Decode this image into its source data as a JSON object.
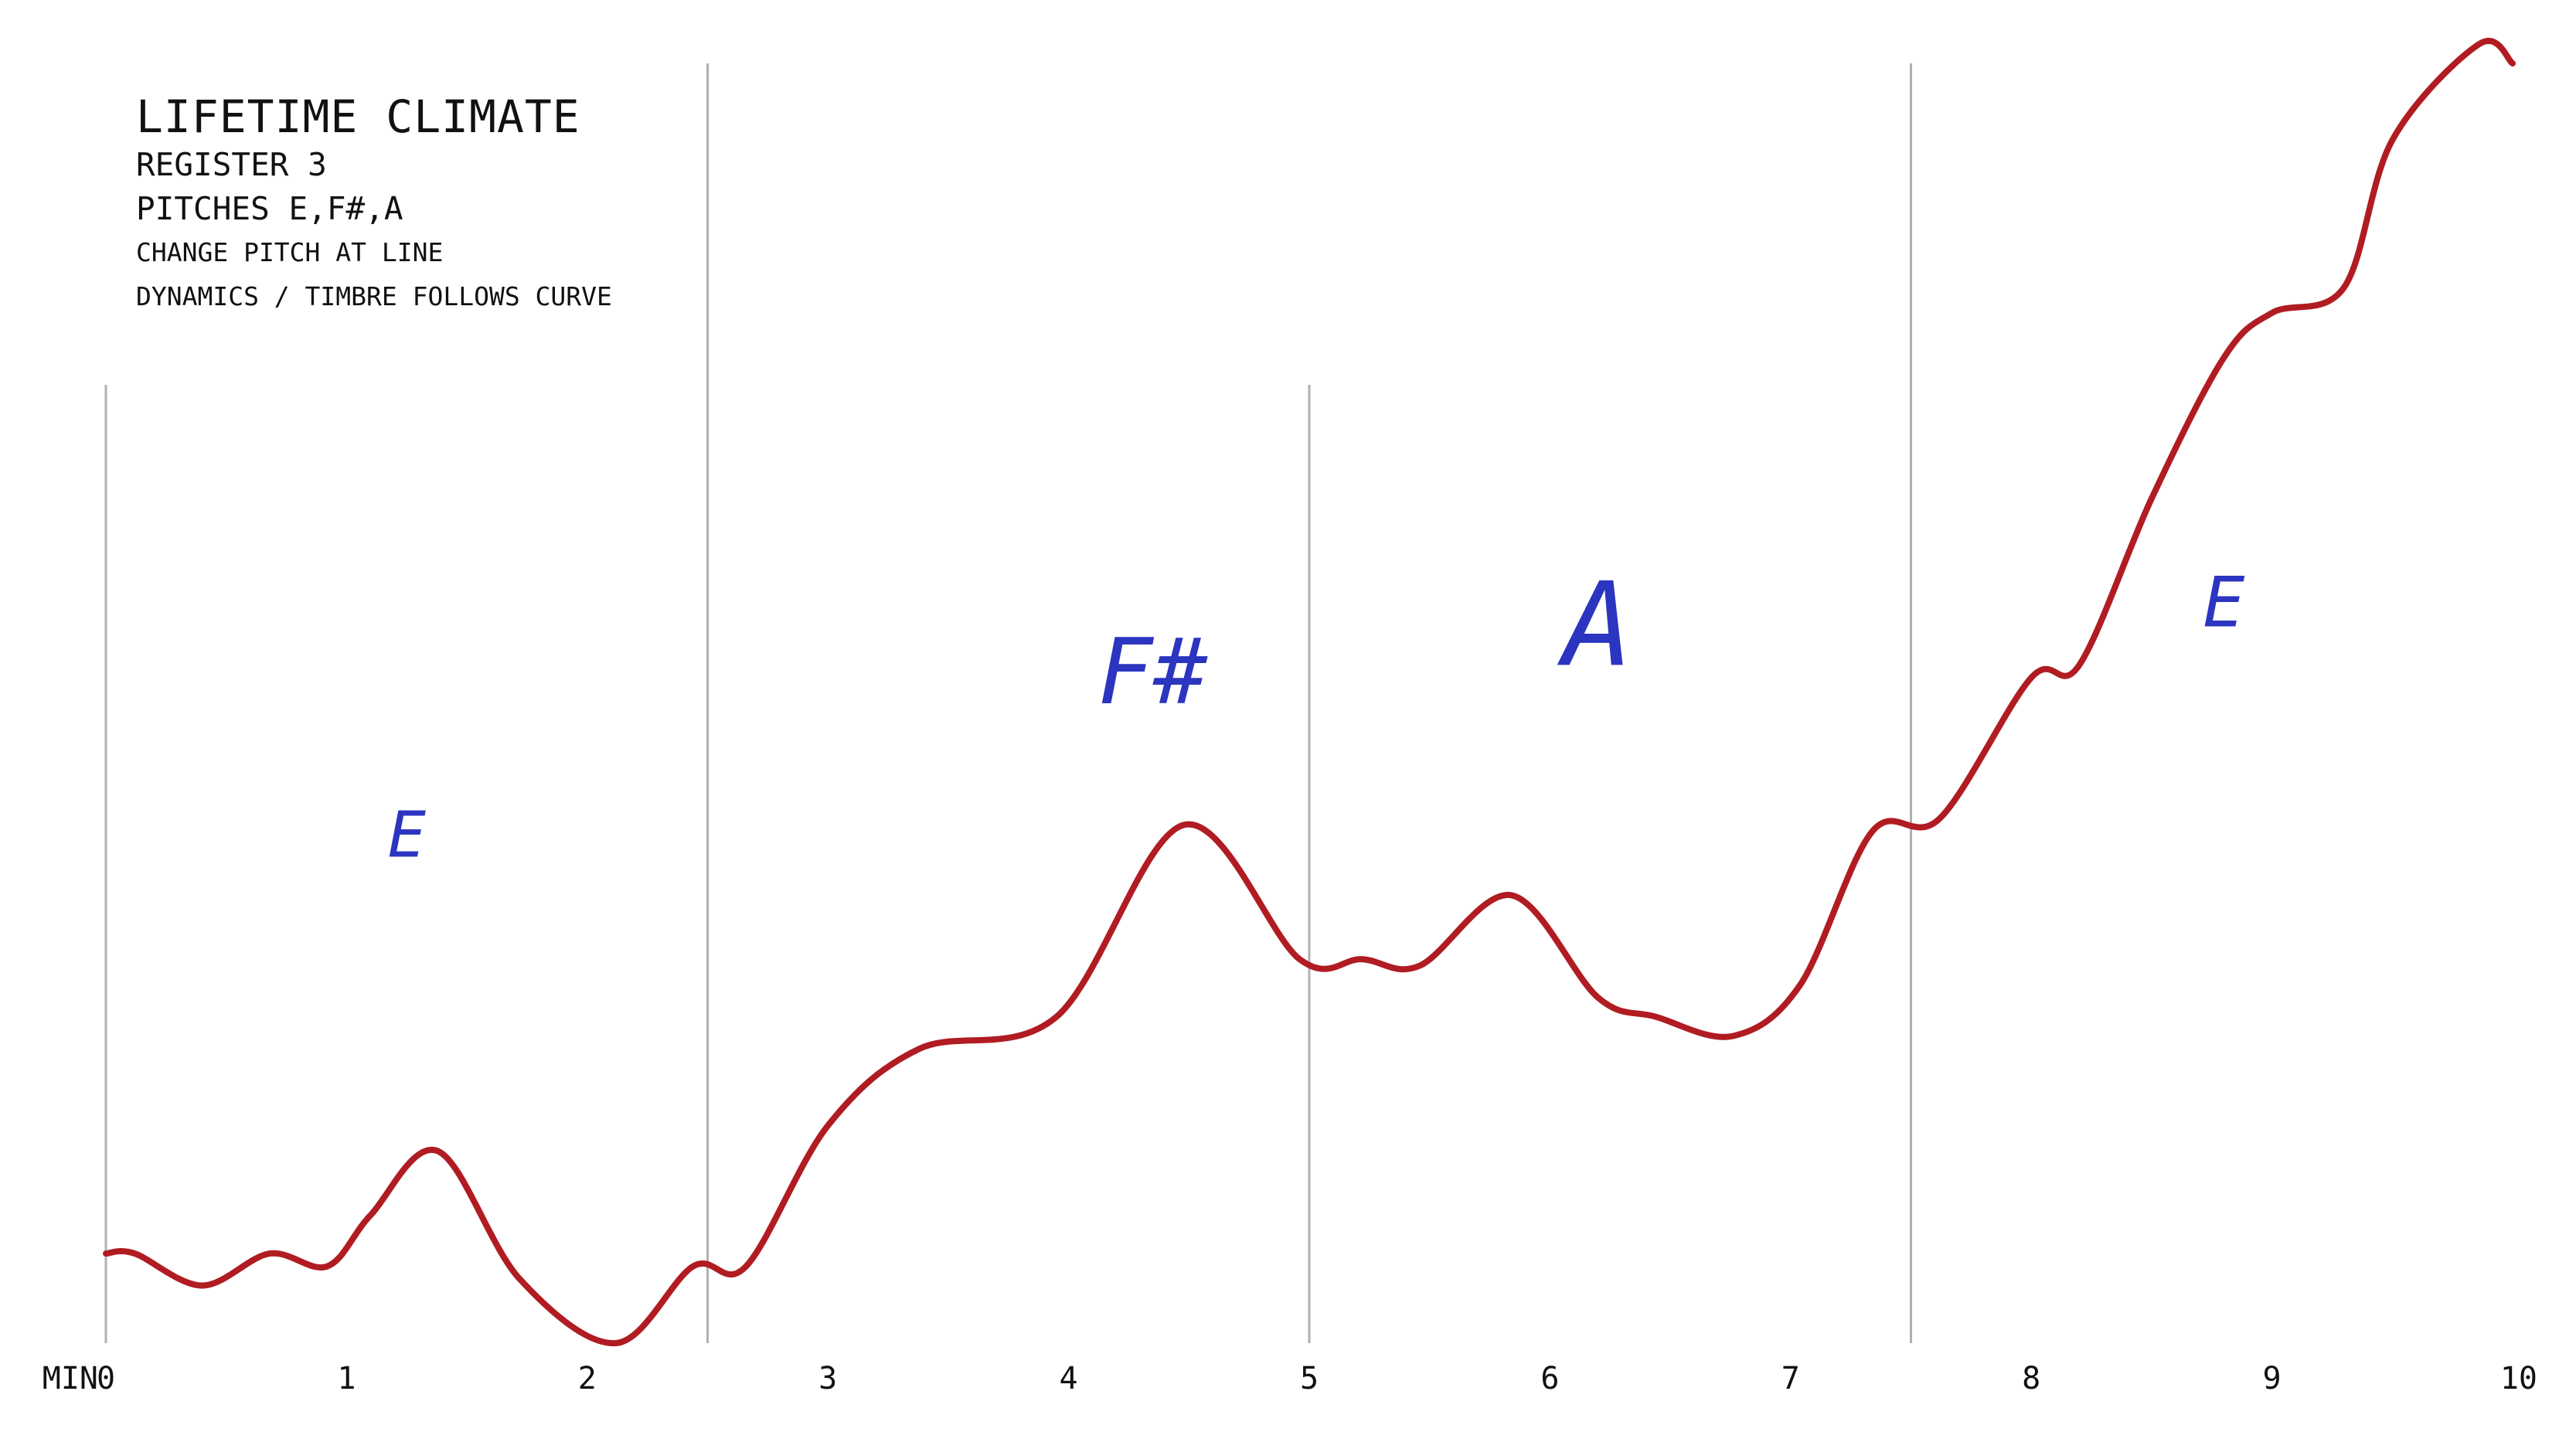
{
  "header": {
    "title": "LIFETIME CLIMATE",
    "lines": [
      "REGISTER 3",
      "PITCHES E,F#,A",
      "CHANGE PITCH AT LINE",
      "DYNAMICS / TIMBRE FOLLOWS CURVE"
    ]
  },
  "colors": {
    "curve": "#b01c22",
    "note": "#2b35c0",
    "grid": "#b0b0b0",
    "text": "#111111"
  },
  "chart_data": {
    "type": "line",
    "xlabel": "MIN",
    "xlim": [
      0,
      10
    ],
    "x_ticks": [
      0,
      1,
      2,
      3,
      4,
      5,
      6,
      7,
      8,
      9,
      10
    ],
    "x_tick_labels": [
      "0",
      "1",
      "2",
      "3",
      "4",
      "5",
      "6",
      "7",
      "8",
      "9",
      "10"
    ],
    "ylim": [
      0,
      100
    ],
    "section_lines": [
      0,
      2.5,
      5,
      7.5
    ],
    "sections": [
      {
        "pitch": "E",
        "x": 1.25,
        "y": 38
      },
      {
        "pitch": "F#",
        "x": 4.35,
        "y": 50
      },
      {
        "pitch": "A",
        "x": 6.2,
        "y": 53
      },
      {
        "pitch": "E",
        "x": 8.8,
        "y": 56
      }
    ],
    "series": [
      {
        "x": [
          0,
          0.12,
          0.4,
          0.68,
          0.92,
          1.1,
          1.38,
          1.72,
          2.12,
          2.44,
          2.66,
          3.0,
          3.38,
          3.95,
          4.48,
          4.96,
          5.22,
          5.46,
          5.84,
          6.2,
          6.44,
          6.76,
          7.04,
          7.34,
          7.62,
          8.0,
          8.2,
          8.5,
          8.8,
          9.0,
          9.3,
          9.5,
          9.86,
          10.0
        ],
        "y": [
          7,
          7,
          4.5,
          7,
          6,
          10,
          15,
          5,
          0,
          6,
          6,
          17,
          23,
          25.5,
          40.5,
          30,
          30,
          29.5,
          35,
          27,
          25.5,
          24,
          28,
          40,
          41,
          52,
          53,
          66,
          77,
          80.5,
          82.5,
          94,
          101.5,
          100
        ]
      }
    ]
  }
}
